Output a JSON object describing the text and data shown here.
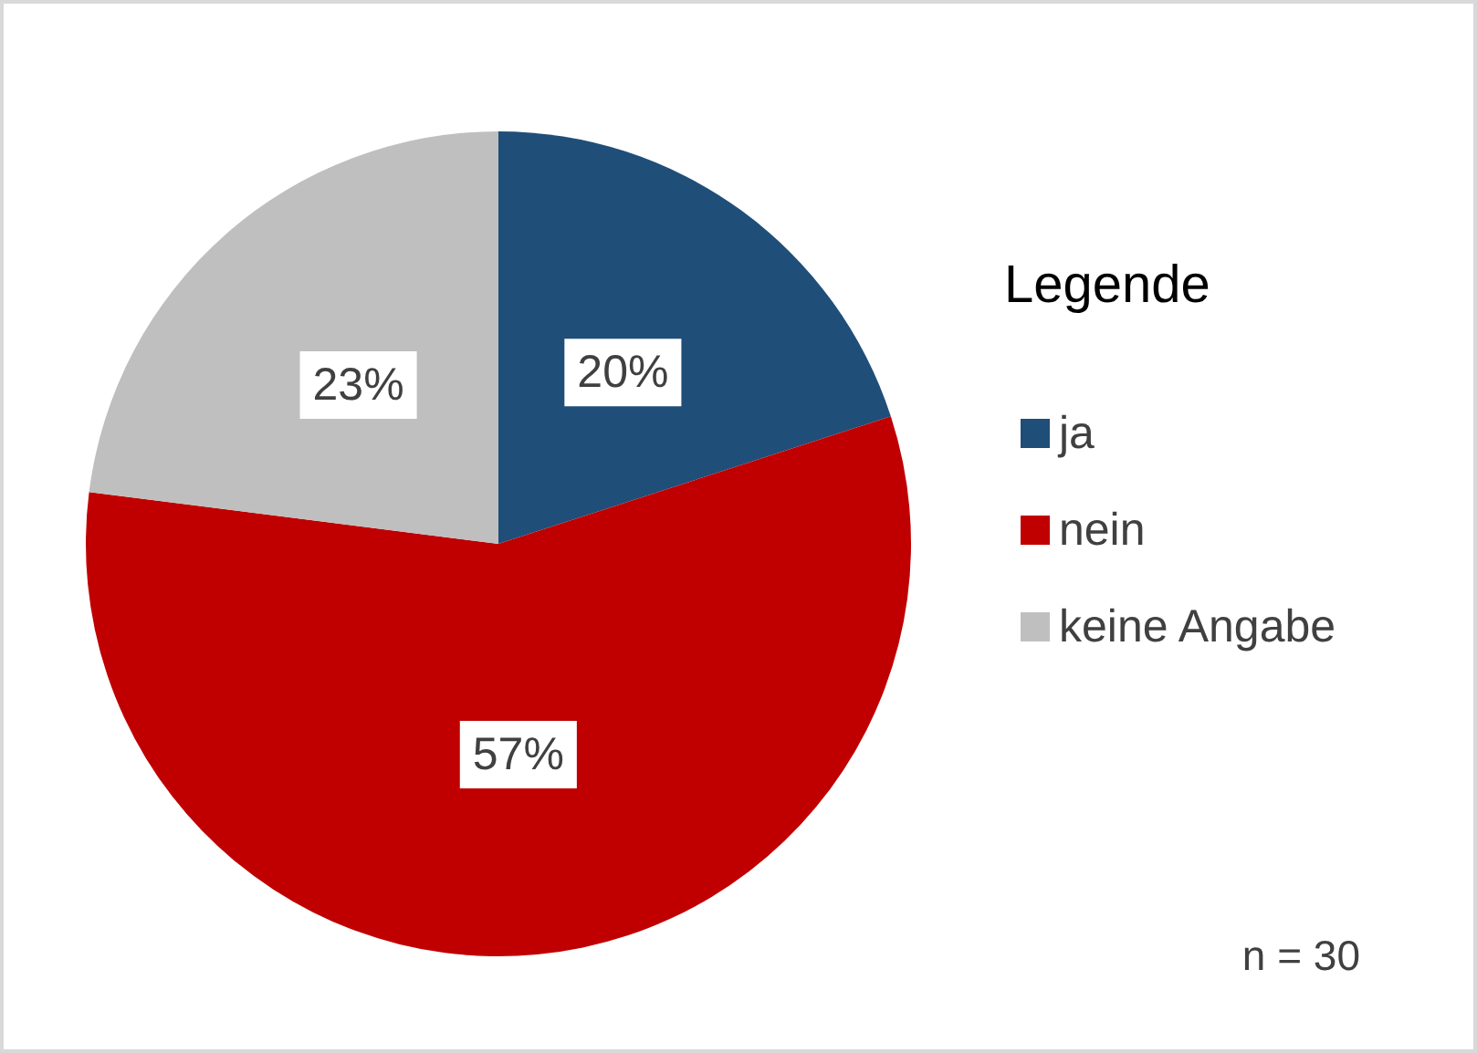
{
  "chart_data": {
    "type": "pie",
    "legend_title": "Legende",
    "categories": [
      "ja",
      "nein",
      "keine Angabe"
    ],
    "values": [
      20,
      57,
      23
    ],
    "colors": [
      "#1f4e79",
      "#c00000",
      "#bfbfbf"
    ],
    "value_labels": [
      "20%",
      "57%",
      "23%"
    ],
    "legend": "right",
    "annotations": [
      "n = 30"
    ]
  }
}
